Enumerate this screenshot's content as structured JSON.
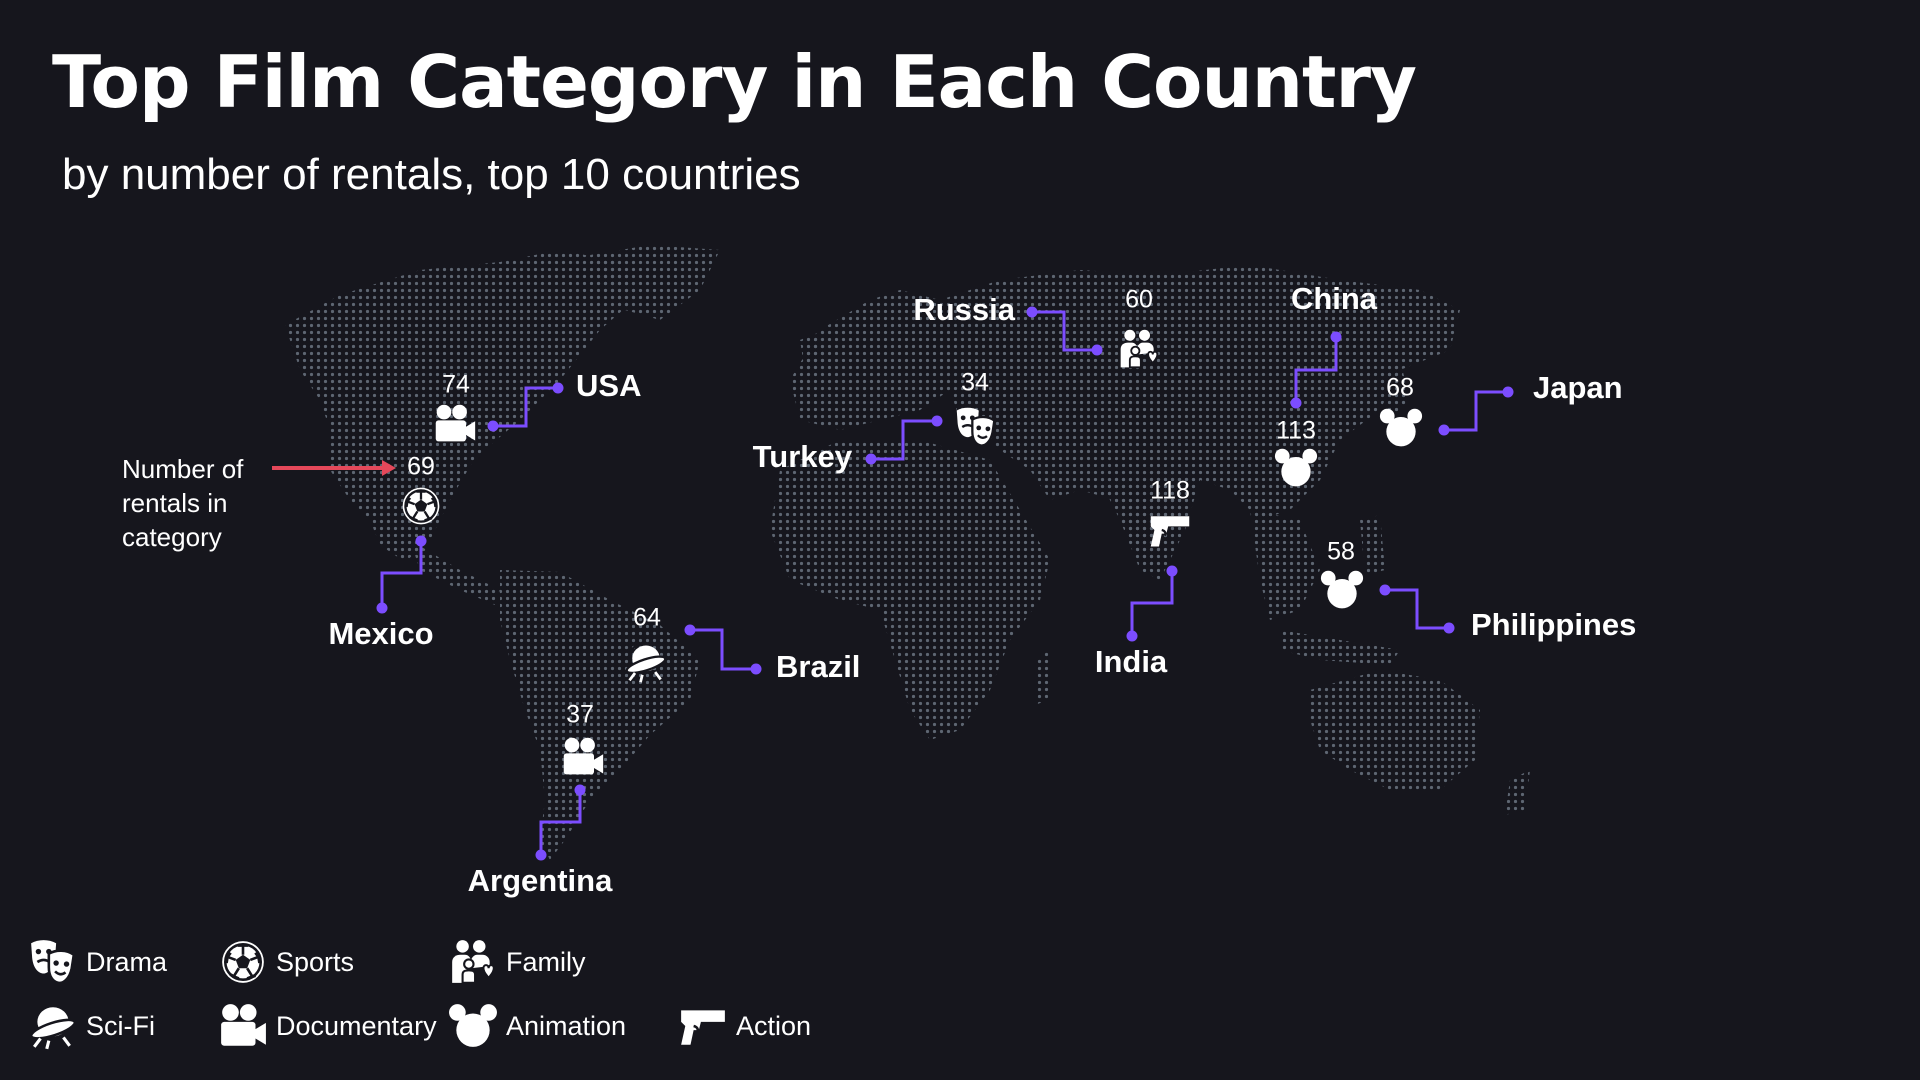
{
  "title": "Top Film Category in Each Country",
  "subtitle": "by number of rentals, top 10 countries",
  "annotation": {
    "lines": [
      "Number of",
      "rentals in",
      "category"
    ],
    "arrow_color": "#e5485a"
  },
  "colors": {
    "background": "#16161d",
    "land_dots": "#5e6672",
    "leader": "#7c4dff",
    "text": "#ffffff"
  },
  "categories": {
    "drama": {
      "label": "Drama",
      "icon": "drama-masks-icon"
    },
    "sports": {
      "label": "Sports",
      "icon": "soccer-ball-icon"
    },
    "family": {
      "label": "Family",
      "icon": "family-icon"
    },
    "scifi": {
      "label": "Sci-Fi",
      "icon": "ufo-icon"
    },
    "documentary": {
      "label": "Documentary",
      "icon": "video-camera-icon"
    },
    "animation": {
      "label": "Animation",
      "icon": "mouse-ears-icon"
    },
    "action": {
      "label": "Action",
      "icon": "pistol-icon"
    }
  },
  "legend": [
    {
      "key": "drama",
      "label": "Drama"
    },
    {
      "key": "sports",
      "label": "Sports"
    },
    {
      "key": "family",
      "label": "Family"
    },
    {
      "key": "scifi",
      "label": "Sci-Fi"
    },
    {
      "key": "documentary",
      "label": "Documentary"
    },
    {
      "key": "animation",
      "label": "Animation"
    },
    {
      "key": "action",
      "label": "Action"
    }
  ],
  "countries": [
    {
      "name": "USA",
      "category": "documentary",
      "rentals": 74
    },
    {
      "name": "Mexico",
      "category": "sports",
      "rentals": 69
    },
    {
      "name": "Brazil",
      "category": "scifi",
      "rentals": 64
    },
    {
      "name": "Argentina",
      "category": "documentary",
      "rentals": 37
    },
    {
      "name": "Turkey",
      "category": "drama",
      "rentals": 34
    },
    {
      "name": "Russia",
      "category": "family",
      "rentals": 60
    },
    {
      "name": "India",
      "category": "action",
      "rentals": 118
    },
    {
      "name": "China",
      "category": "animation",
      "rentals": 113
    },
    {
      "name": "Japan",
      "category": "animation",
      "rentals": 68
    },
    {
      "name": "Philippines",
      "category": "animation",
      "rentals": 58
    }
  ]
}
